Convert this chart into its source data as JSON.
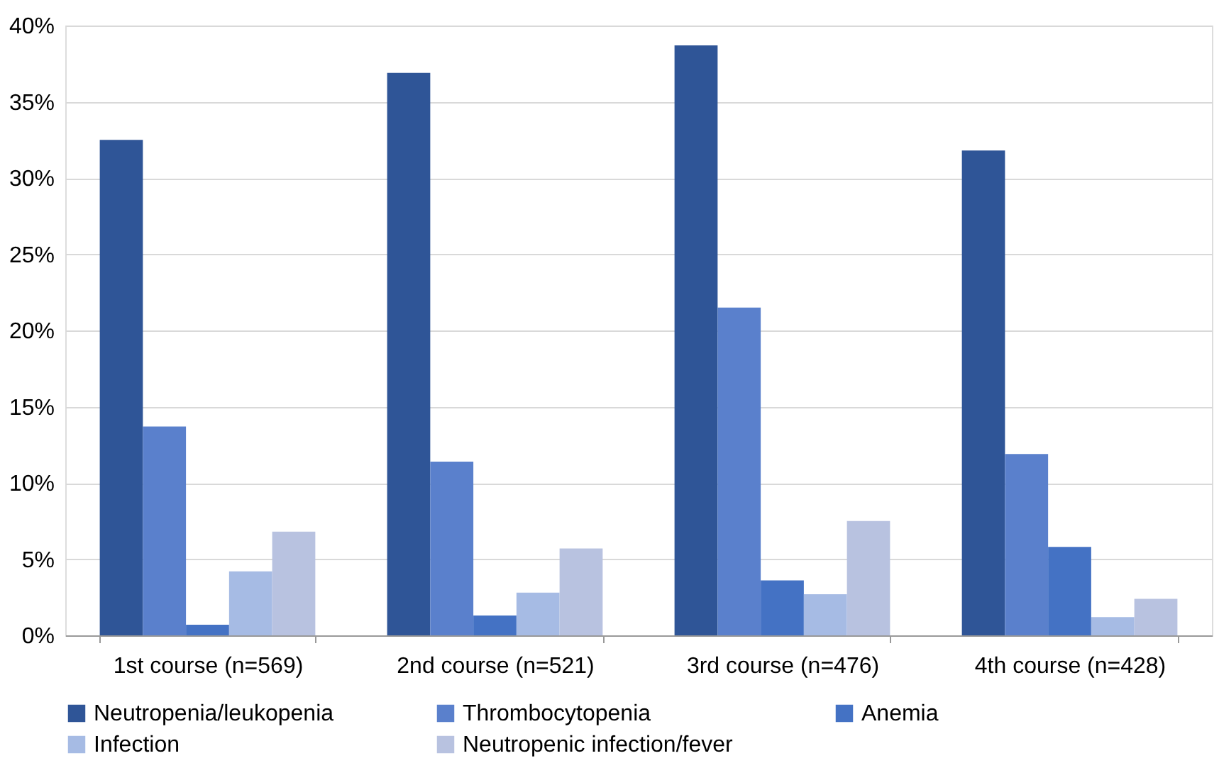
{
  "chart_data": {
    "type": "bar",
    "categories": [
      "1st course (n=569)",
      "2nd course (n=521)",
      "3rd course (n=476)",
      "4th course (n=428)"
    ],
    "series": [
      {
        "name": "Neutropenia/leukopenia",
        "color": "#2f5597",
        "values": [
          32.5,
          36.9,
          38.7,
          31.8
        ]
      },
      {
        "name": "Thrombocytopenia",
        "color": "#5a80cc",
        "values": [
          13.7,
          11.4,
          21.5,
          11.9
        ]
      },
      {
        "name": "Anemia",
        "color": "#4472c4",
        "values": [
          0.7,
          1.3,
          3.6,
          5.8
        ]
      },
      {
        "name": "Infection",
        "color": "#a6bbe4",
        "values": [
          4.2,
          2.8,
          2.7,
          1.2
        ]
      },
      {
        "name": "Neutropenic infection/fever",
        "color": "#b8c2e0",
        "values": [
          6.8,
          5.7,
          7.5,
          2.4
        ]
      }
    ],
    "ylim": [
      0,
      40
    ],
    "yticks": [
      {
        "value": 0,
        "label": "0%"
      },
      {
        "value": 5,
        "label": "5%"
      },
      {
        "value": 10,
        "label": "10%"
      },
      {
        "value": 15,
        "label": "15%"
      },
      {
        "value": 20,
        "label": "20%"
      },
      {
        "value": 25,
        "label": "25%"
      },
      {
        "value": 30,
        "label": "30%"
      },
      {
        "value": 35,
        "label": "35%"
      },
      {
        "value": 40,
        "label": "40%"
      }
    ],
    "grid": "y",
    "legend": "bottom"
  }
}
